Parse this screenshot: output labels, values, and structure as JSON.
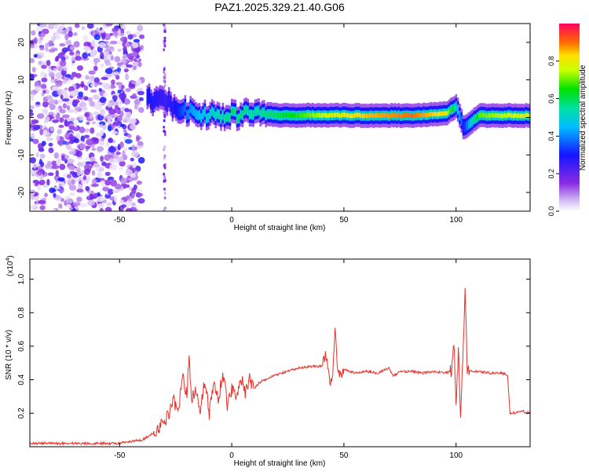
{
  "title": "PAZ1.2025.329.21.40.G06",
  "chart_data": [
    {
      "type": "heatmap",
      "title": "PAZ1.2025.329.21.40.G06",
      "xlabel": "Height of straight line (km)",
      "ylabel": "Frequency (Hz)",
      "xlim": [
        -90,
        133
      ],
      "ylim": [
        -25,
        25
      ],
      "xticks": [
        -50,
        0,
        50,
        100
      ],
      "xtick_labels": [
        "-50",
        "0",
        "50",
        "100"
      ],
      "yticks": [
        -20,
        -10,
        0,
        10,
        20
      ],
      "ytick_labels": [
        "-20",
        "-10",
        "0",
        "10",
        "20"
      ],
      "colorbar": {
        "label": "Normalized spectral amplitude",
        "range": [
          0,
          1
        ],
        "ticks": [
          0,
          0.2,
          0.4,
          0.6,
          0.8
        ],
        "tick_labels": [
          "0.0",
          "0.2",
          "0.4",
          "0.6",
          "0.8"
        ]
      },
      "ridge": {
        "description_points_x_km": [
          -38,
          -30,
          -25,
          -20,
          -10,
          0,
          10,
          20,
          40,
          60,
          80,
          95,
          100,
          103,
          110,
          133
        ],
        "frequency_hz": [
          5,
          4,
          3,
          1.5,
          0.5,
          0.5,
          1.5,
          0.5,
          0.6,
          0.5,
          0.5,
          1,
          3,
          -3,
          0.5,
          0.5
        ],
        "amplitude": [
          0.3,
          0.25,
          0.3,
          0.4,
          0.5,
          0.6,
          0.55,
          0.6,
          0.75,
          0.85,
          0.9,
          0.8,
          0.5,
          0.3,
          0.7,
          0.8
        ]
      },
      "noise_region_x_km": [
        -90,
        -30
      ]
    },
    {
      "type": "line",
      "xlabel": "Height of straight line (km)",
      "ylabel": "SNR (10 * v/v)",
      "yscale_label": "(x10",
      "yscale_exp": "4",
      "yscale_close": ")",
      "xlim": [
        -90,
        133
      ],
      "ylim": [
        0.0,
        1.12
      ],
      "xticks": [
        -50,
        0,
        50,
        100
      ],
      "xtick_labels": [
        "-50",
        "0",
        "50",
        "100"
      ],
      "yticks": [
        0.2,
        0.4,
        0.6,
        0.8,
        1.0
      ],
      "ytick_labels": [
        "0.2",
        "0.4",
        "0.6",
        "0.8",
        "1.0"
      ],
      "series_color": "#e8302a",
      "series": [
        {
          "name": "SNR",
          "x": [
            -90,
            -80,
            -70,
            -60,
            -50,
            -45,
            -40,
            -35,
            -32,
            -30,
            -28,
            -26,
            -24,
            -22,
            -20,
            -19,
            -18,
            -16,
            -14,
            -12,
            -10,
            -8,
            -6,
            -4,
            -2,
            0,
            2,
            4,
            6,
            8,
            10,
            12,
            15,
            20,
            25,
            30,
            35,
            40,
            42,
            44,
            45,
            46,
            47,
            48,
            50,
            55,
            60,
            65,
            70,
            72,
            75,
            80,
            85,
            90,
            95,
            98,
            99,
            100,
            101,
            102,
            103,
            104,
            105,
            106,
            110,
            115,
            120,
            123,
            124,
            125,
            130,
            133
          ],
          "y": [
            0.02,
            0.02,
            0.02,
            0.02,
            0.02,
            0.03,
            0.04,
            0.08,
            0.12,
            0.15,
            0.2,
            0.3,
            0.18,
            0.45,
            0.3,
            0.55,
            0.28,
            0.35,
            0.22,
            0.4,
            0.2,
            0.38,
            0.28,
            0.45,
            0.25,
            0.35,
            0.3,
            0.42,
            0.32,
            0.4,
            0.35,
            0.38,
            0.4,
            0.43,
            0.45,
            0.47,
            0.48,
            0.48,
            0.55,
            0.38,
            0.45,
            0.7,
            0.5,
            0.42,
            0.46,
            0.44,
            0.45,
            0.44,
            0.47,
            0.42,
            0.45,
            0.45,
            0.44,
            0.45,
            0.44,
            0.45,
            0.65,
            0.2,
            0.6,
            0.15,
            0.55,
            0.9,
            0.48,
            0.45,
            0.45,
            0.44,
            0.44,
            0.43,
            0.2,
            0.2,
            0.21,
            0.2
          ]
        }
      ]
    }
  ]
}
